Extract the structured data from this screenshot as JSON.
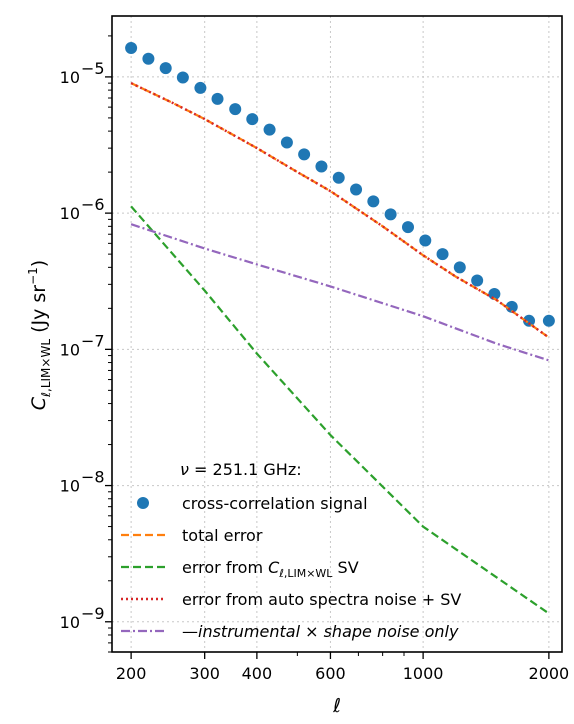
{
  "chart_data": {
    "type": "scatter",
    "xscale": "log",
    "yscale": "log",
    "xlim": [
      180,
      2150
    ],
    "ylim": [
      6e-10,
      2.8e-05
    ],
    "xticks": [
      200,
      300,
      400,
      600,
      1000,
      2000
    ],
    "xtick_labels": [
      "200",
      "300",
      "400",
      "600",
      "1000",
      "2000"
    ],
    "yticks": [
      1e-09,
      1e-08,
      1e-07,
      1e-06,
      1e-05
    ],
    "ytick_labels": [
      "10",
      "10",
      "10",
      "10",
      "10"
    ],
    "ytick_exponents": [
      "−9",
      "−8",
      "−7",
      "−6",
      "−5"
    ],
    "xlabel": "ℓ",
    "ylabel": {
      "main": "C",
      "subscript": "ℓ,LIM×WL",
      "units": "(Jy sr",
      "units_exp": "−1",
      "units_close": ")"
    },
    "grid": true,
    "legend_title": "ν = 251.1 GHz:",
    "legend_position": "lower-right",
    "legend": [
      {
        "key": "signal",
        "label": "cross-correlation signal"
      },
      {
        "key": "total",
        "label": "total error"
      },
      {
        "key": "sv",
        "label_main": "error from ",
        "label_c": "C",
        "label_sub": "ℓ,LIM×WL",
        "label_tail": " SV"
      },
      {
        "key": "auto",
        "label": "error from auto spectra noise + SV"
      },
      {
        "key": "inst",
        "label_prefix": "—",
        "label_it1": "instrumental",
        "label_mid": " × ",
        "label_it2": "shape noise only"
      }
    ],
    "series": [
      {
        "name": "cross-correlation signal",
        "style": "markers",
        "color": "#1f77b4",
        "x": [
          200,
          220,
          242,
          266,
          293,
          322,
          355,
          390,
          429,
          472,
          519,
          571,
          628,
          691,
          760,
          836,
          920,
          1012,
          1113,
          1224,
          1347,
          1481,
          1630,
          1793,
          2000
        ],
        "y": [
          1.63e-05,
          1.36e-05,
          1.16e-05,
          9.9e-06,
          8.3e-06,
          6.9e-06,
          5.8e-06,
          4.9e-06,
          4.1e-06,
          3.3e-06,
          2.7e-06,
          2.2e-06,
          1.82e-06,
          1.49e-06,
          1.22e-06,
          9.8e-07,
          7.9e-07,
          6.3e-07,
          5e-07,
          4e-07,
          3.2e-07,
          2.55e-07,
          2.05e-07,
          1.62e-07,
          1.62e-07
        ]
      },
      {
        "name": "total error",
        "style": "dashed",
        "color": "#ff7f0e",
        "x": [
          200,
          250,
          300,
          400,
          500,
          600,
          800,
          1000,
          1200,
          1500,
          2000
        ],
        "y": [
          9e-06,
          6.5e-06,
          4.9e-06,
          3e-06,
          2e-06,
          1.45e-06,
          8e-07,
          4.9e-07,
          3.4e-07,
          2.3e-07,
          1.22e-07
        ]
      },
      {
        "name": "error from C SV",
        "style": "dashed",
        "color": "#2ca02c",
        "x": [
          200,
          300,
          400,
          600,
          1000,
          2000
        ],
        "y": [
          1.12e-06,
          2.7e-07,
          9.3e-08,
          2.35e-08,
          5e-09,
          1.15e-09
        ]
      },
      {
        "name": "error from auto spectra noise + SV",
        "style": "dotted",
        "color": "#d62728",
        "x": [
          200,
          250,
          300,
          400,
          500,
          600,
          800,
          1000,
          1200,
          1500,
          2000
        ],
        "y": [
          9e-06,
          6.5e-06,
          4.9e-06,
          3e-06,
          2e-06,
          1.45e-06,
          8e-07,
          4.9e-07,
          3.4e-07,
          2.3e-07,
          1.22e-07
        ]
      },
      {
        "name": "instrumental × shape noise only",
        "style": "dashdot",
        "color": "#9467bd",
        "x": [
          200,
          300,
          400,
          600,
          1000,
          1500,
          2000
        ],
        "y": [
          8.3e-07,
          5.5e-07,
          4.2e-07,
          2.9e-07,
          1.75e-07,
          1.1e-07,
          8.3e-08
        ]
      }
    ]
  }
}
